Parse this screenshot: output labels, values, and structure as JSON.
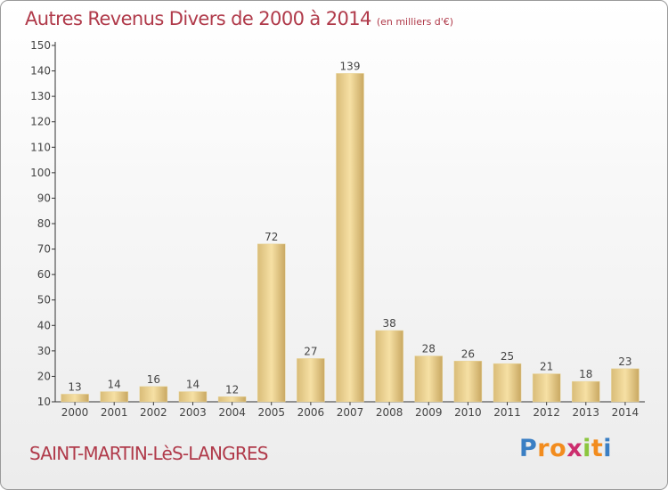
{
  "title": "Autres Revenus Divers de 2000 à 2014",
  "subtitle": "(en milliers d'€)",
  "commune": "SAINT-MARTIN-LèS-LANGRES",
  "logo": {
    "text": "Proxiti",
    "letters": [
      {
        "ch": "P",
        "color": "#3a7fc4"
      },
      {
        "ch": "r",
        "color": "#f28c1e"
      },
      {
        "ch": "o",
        "color": "#f28c1e"
      },
      {
        "ch": "x",
        "color": "#cc2e6e"
      },
      {
        "ch": "i",
        "color": "#8cc63f"
      },
      {
        "ch": "t",
        "color": "#f28c1e"
      },
      {
        "ch": "i",
        "color": "#3a7fc4"
      }
    ]
  },
  "colors": {
    "text": "#b03a4a",
    "bar_light": "#f6e0a4",
    "bar_dark": "#c9a862"
  },
  "chart_data": {
    "type": "bar",
    "categories": [
      "2000",
      "2001",
      "2002",
      "2003",
      "2004",
      "2005",
      "2006",
      "2007",
      "2008",
      "2009",
      "2010",
      "2011",
      "2012",
      "2013",
      "2014"
    ],
    "values": [
      13,
      14,
      16,
      14,
      12,
      72,
      27,
      139,
      38,
      28,
      26,
      25,
      21,
      18,
      23
    ],
    "title": "Autres Revenus Divers de 2000 à 2014",
    "xlabel": "",
    "ylabel": "",
    "ylim": [
      10,
      150
    ],
    "yticks": [
      10,
      20,
      30,
      40,
      50,
      60,
      70,
      80,
      90,
      100,
      110,
      120,
      130,
      140,
      150
    ],
    "data_labels": true,
    "grid": false,
    "legend": "none"
  }
}
